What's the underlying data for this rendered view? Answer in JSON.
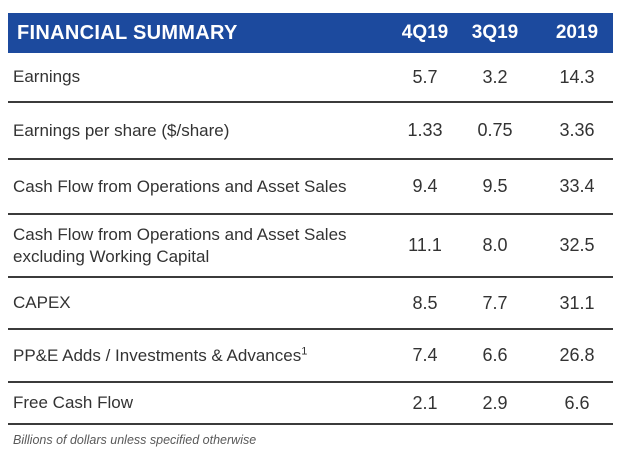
{
  "chart_data": {
    "type": "table",
    "title": "FINANCIAL SUMMARY",
    "columns": [
      "4Q19",
      "3Q19",
      "2019"
    ],
    "rows": [
      {
        "label": "Earnings",
        "values": [
          "5.7",
          "3.2",
          "14.3"
        ]
      },
      {
        "label": "Earnings per share ($/share)",
        "values": [
          "1.33",
          "0.75",
          "3.36"
        ]
      },
      {
        "label": "Cash Flow from Operations and Asset Sales",
        "values": [
          "9.4",
          "9.5",
          "33.4"
        ]
      },
      {
        "label": "Cash Flow from Operations and Asset Sales excluding Working Capital",
        "values": [
          "11.1",
          "8.0",
          "32.5"
        ]
      },
      {
        "label": "CAPEX",
        "values": [
          "8.5",
          "7.7",
          "31.1"
        ]
      },
      {
        "label": "PP&E Adds / Investments & Advances",
        "superscript": "1",
        "values": [
          "7.4",
          "6.6",
          "26.8"
        ]
      },
      {
        "label": "Free Cash Flow",
        "values": [
          "2.1",
          "2.9",
          "6.6"
        ]
      }
    ],
    "footnote": "Billions of dollars unless specified otherwise",
    "units": "Billions of dollars unless specified otherwise",
    "layout": {
      "header_position": "top",
      "value_alignment": "center"
    }
  },
  "colors": {
    "header_bg": "#1C4A9E",
    "header_text": "#FFFFFF",
    "row_text": "#333333",
    "divider": "#3B3B3B",
    "footnote_text": "#595959",
    "background": "#FFFFFF"
  }
}
